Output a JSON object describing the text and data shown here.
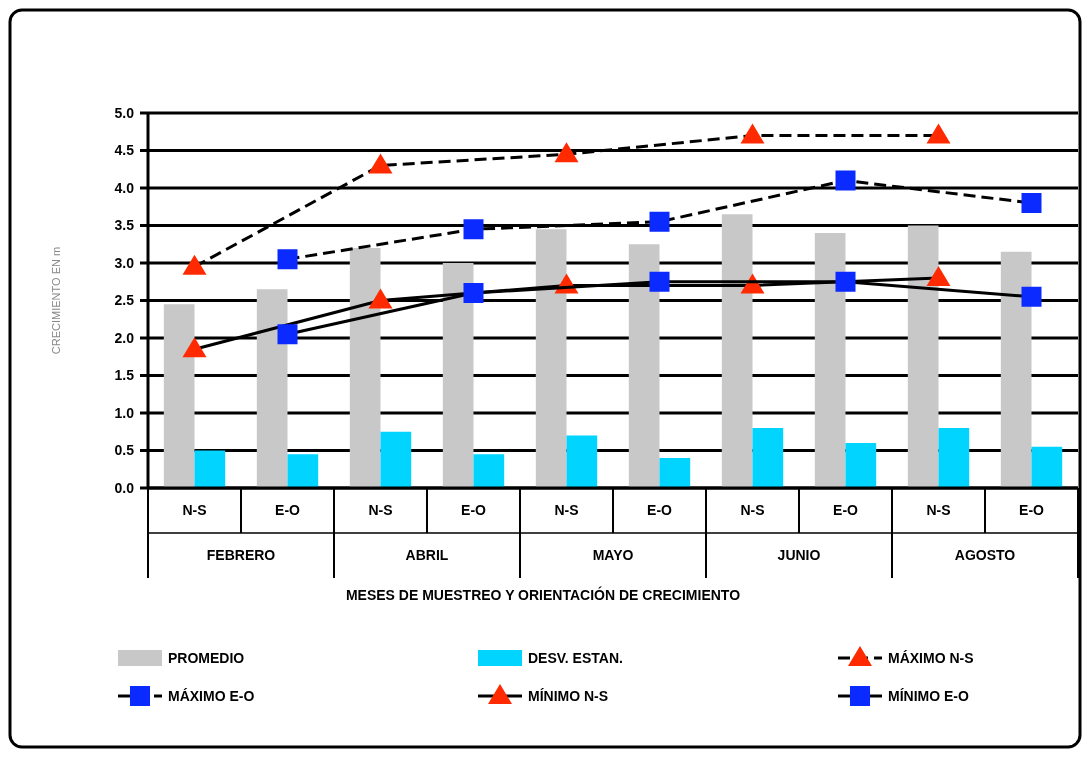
{
  "chart_data": {
    "type": "bar",
    "xlabel": "MESES DE MUESTREO Y ORIENTACIÓN DE CRECIMIENTO",
    "ylabel": "CRECIMIENTO EN m",
    "categories": [
      "N-S",
      "E-O",
      "N-S",
      "E-O",
      "N-S",
      "E-O",
      "N-S",
      "E-O",
      "N-S",
      "E-O"
    ],
    "annotations": [
      "FEBRERO",
      "ABRIL",
      "MAYO",
      "JUNIO",
      "AGOSTO"
    ],
    "ylim": [
      0,
      5
    ],
    "yticks": [
      {
        "value": 0,
        "label": "0.0"
      },
      0.5,
      {
        "value": 1,
        "label": "1.0"
      },
      1.5,
      {
        "value": 2,
        "label": "2.0"
      },
      2.5,
      {
        "value": 3,
        "label": "3.0"
      },
      3.5,
      {
        "value": 4,
        "label": "4.0"
      },
      4.5,
      {
        "value": 5,
        "label": "5.0"
      }
    ],
    "grid": "y",
    "legend": "bottom",
    "series": [
      {
        "name": "PROMEDIO",
        "type": "bar",
        "color": "#c8c8c8",
        "values": [
          2.45,
          2.65,
          3.2,
          3.0,
          3.45,
          3.25,
          3.65,
          3.4,
          3.5,
          3.15
        ]
      },
      {
        "name": "DESV. ESTAN.",
        "type": "bar",
        "color": "#00d4ff",
        "values": [
          0.5,
          0.45,
          0.75,
          0.45,
          0.7,
          0.4,
          0.8,
          0.6,
          0.8,
          0.55
        ]
      },
      {
        "name": "MÁXIMO N-S",
        "type": "line",
        "color": "#ff2a00",
        "marker": "triangle",
        "line_style": "dashed",
        "values": [
          2.95,
          null,
          4.3,
          null,
          4.45,
          null,
          4.7,
          null,
          4.7,
          null
        ]
      },
      {
        "name": "MÁXIMO E-O",
        "type": "line",
        "color": "#0a2aff",
        "marker": "square",
        "line_style": "dashed",
        "values": [
          null,
          3.05,
          null,
          3.45,
          null,
          3.55,
          null,
          4.1,
          null,
          3.8
        ]
      },
      {
        "name": "MÍNIMO N-S",
        "type": "line",
        "color": "#ff2a00",
        "marker": "triangle",
        "line_style": "solid",
        "values": [
          1.85,
          null,
          2.5,
          null,
          2.7,
          null,
          2.7,
          null,
          2.8,
          null
        ]
      },
      {
        "name": "MÍNIMO E-O",
        "type": "line",
        "color": "#0a2aff",
        "marker": "square",
        "line_style": "solid",
        "values": [
          null,
          2.05,
          null,
          2.6,
          null,
          2.75,
          null,
          2.75,
          null,
          2.55
        ]
      }
    ]
  }
}
